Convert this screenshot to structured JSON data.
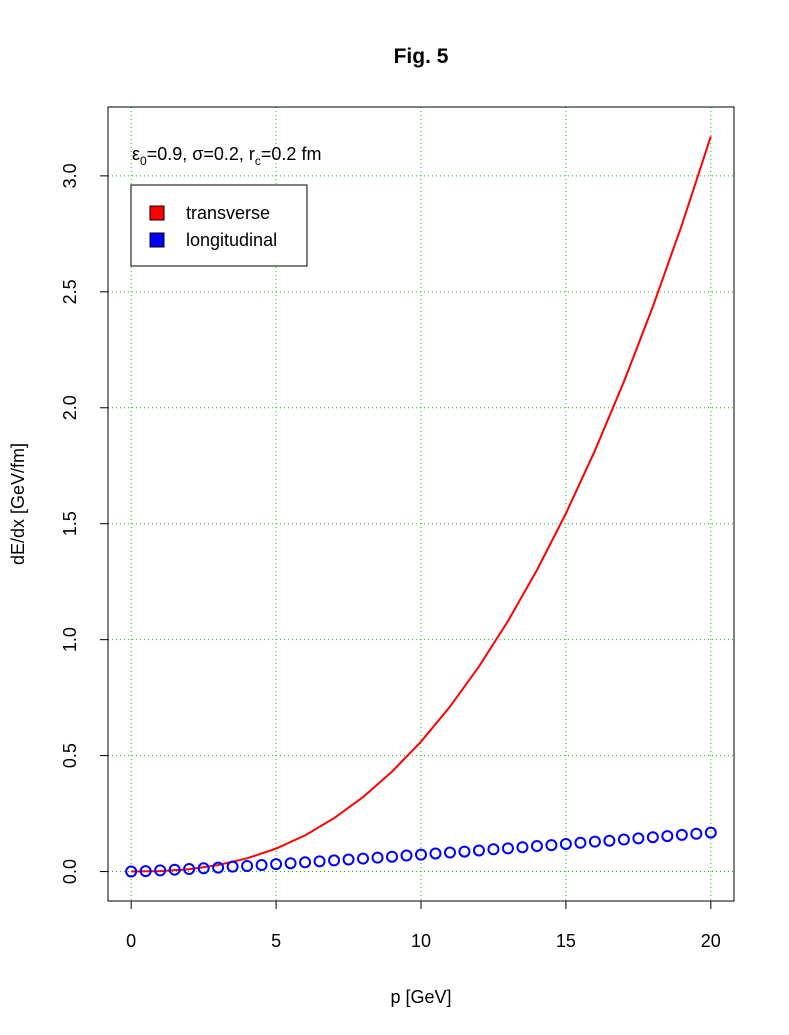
{
  "chart_data": {
    "type": "line",
    "title": "Fig. 5",
    "x_label": "p [GeV]",
    "y_label": "dE/dx [GeV/fm]",
    "annotation": [
      "ε",
      "0",
      "=0.9, σ=0.2, r",
      "c",
      "=0.2 fm"
    ],
    "xlim": [
      -0.8,
      20.8
    ],
    "xticks": [
      0,
      5,
      10,
      15,
      20
    ],
    "ylim": [
      -0.127,
      3.297
    ],
    "yticks": [
      {
        "value": 0,
        "label": "0.0"
      },
      0.5,
      {
        "value": 1,
        "label": "1.0"
      },
      1.5,
      {
        "value": 2,
        "label": "2.0"
      },
      2.5,
      {
        "value": 3,
        "label": "3.0"
      }
    ],
    "grid": true,
    "grid_color": "#00cc00",
    "legend": "top-left",
    "series": [
      {
        "name": "transverse",
        "color": "#ff0000",
        "style": "line",
        "x": [
          0,
          1,
          2,
          3,
          4,
          5,
          6,
          7,
          8,
          9,
          10,
          11,
          12,
          13,
          14,
          15,
          16,
          17,
          18,
          19,
          20
        ],
        "values": [
          0,
          0.002,
          0.01,
          0.028,
          0.057,
          0.099,
          0.156,
          0.23,
          0.321,
          0.431,
          0.56,
          0.711,
          0.884,
          1.08,
          1.3,
          1.544,
          1.815,
          2.112,
          2.436,
          2.788,
          3.17
        ]
      },
      {
        "name": "longitudinal",
        "color": "#0000ff",
        "style": "points",
        "x": [
          0,
          0.5,
          1,
          1.5,
          2,
          2.5,
          3,
          3.5,
          4,
          4.5,
          5,
          5.5,
          6,
          6.5,
          7,
          7.5,
          8,
          8.5,
          9,
          9.5,
          10,
          10.5,
          11,
          11.5,
          12,
          12.5,
          13,
          13.5,
          14,
          14.5,
          15,
          15.5,
          16,
          16.5,
          17,
          17.5,
          18,
          18.5,
          19,
          19.5,
          20
        ],
        "values": [
          0,
          0.002,
          0.005,
          0.008,
          0.011,
          0.014,
          0.017,
          0.021,
          0.024,
          0.028,
          0.032,
          0.036,
          0.04,
          0.044,
          0.048,
          0.052,
          0.056,
          0.06,
          0.064,
          0.069,
          0.073,
          0.078,
          0.082,
          0.086,
          0.091,
          0.096,
          0.1,
          0.105,
          0.11,
          0.114,
          0.119,
          0.124,
          0.129,
          0.133,
          0.138,
          0.143,
          0.148,
          0.153,
          0.158,
          0.163,
          0.168
        ]
      }
    ]
  }
}
